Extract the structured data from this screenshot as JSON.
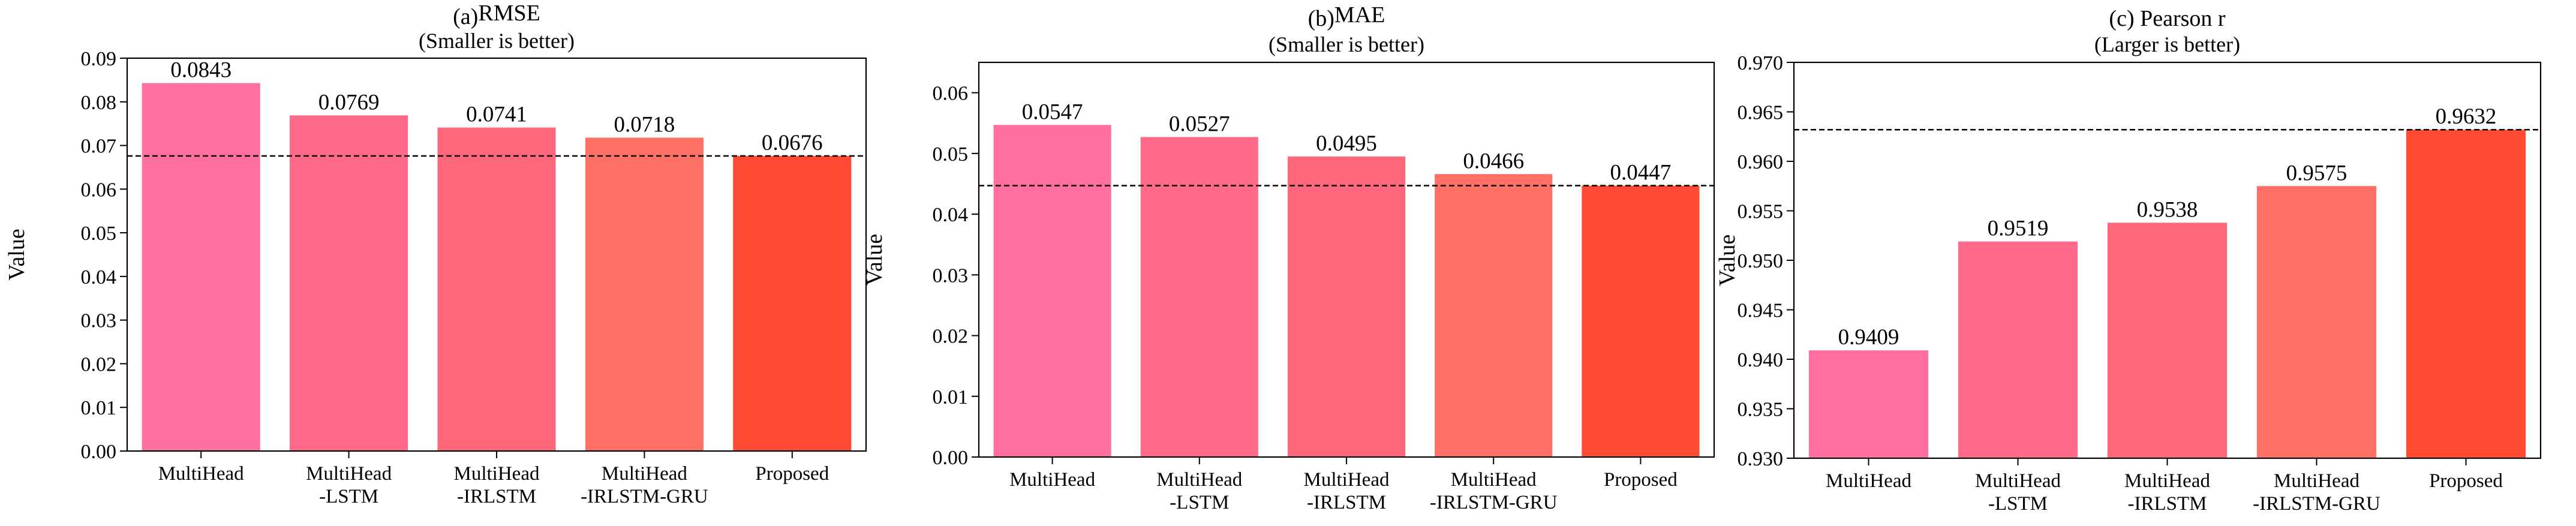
{
  "chart_data": [
    {
      "type": "bar",
      "panel": "(a)",
      "title": "RMSE",
      "subtitle": "(Smaller is better)",
      "ylabel": "Value",
      "categories": [
        "MultiHead",
        "MultiHead\n-LSTM",
        "MultiHead\n-IRLSTM",
        "MultiHead\n-IRLSTM-GRU",
        "Proposed"
      ],
      "values": [
        0.0843,
        0.0769,
        0.0741,
        0.0718,
        0.0676
      ],
      "value_labels": [
        "0.0843",
        "0.0769",
        "0.0741",
        "0.0718",
        "0.0676"
      ],
      "ylim": [
        0,
        0.09
      ],
      "yticks": [
        0,
        0.01,
        0.02,
        0.03,
        0.04,
        0.05,
        0.06,
        0.07,
        0.08,
        0.09
      ],
      "ytick_labels": [
        "0.00",
        "0.01",
        "0.02",
        "0.03",
        "0.04",
        "0.05",
        "0.06",
        "0.07",
        "0.08",
        "0.09"
      ],
      "reference_line": 0.0676,
      "colors": [
        "#ff6fa0",
        "#ff6a8a",
        "#ff687a",
        "#ff7066",
        "#ff4b33"
      ]
    },
    {
      "type": "bar",
      "panel": "(b)",
      "title": "MAE",
      "subtitle": "(Smaller is better)",
      "ylabel": "Value",
      "categories": [
        "MultiHead",
        "MultiHead\n-LSTM",
        "MultiHead\n-IRLSTM",
        "MultiHead\n-IRLSTM-GRU",
        "Proposed"
      ],
      "values": [
        0.0547,
        0.0527,
        0.0495,
        0.0466,
        0.0447
      ],
      "value_labels": [
        "0.0547",
        "0.0527",
        "0.0495",
        "0.0466",
        "0.0447"
      ],
      "ylim": [
        0,
        0.065
      ],
      "yticks": [
        0,
        0.01,
        0.02,
        0.03,
        0.04,
        0.05,
        0.06
      ],
      "ytick_labels": [
        "0.00",
        "0.01",
        "0.02",
        "0.03",
        "0.04",
        "0.05",
        "0.06"
      ],
      "reference_line": 0.0447,
      "colors": [
        "#ff6fa0",
        "#ff6a8a",
        "#ff687a",
        "#ff7066",
        "#ff4b33"
      ]
    },
    {
      "type": "bar",
      "panel": "(c)",
      "title": "Pearson r",
      "subtitle": "(Larger is better)",
      "ylabel": "Value",
      "categories": [
        "MultiHead",
        "MultiHead\n-LSTM",
        "MultiHead\n-IRLSTM",
        "MultiHead\n-IRLSTM-GRU",
        "Proposed"
      ],
      "values": [
        0.9409,
        0.9519,
        0.9538,
        0.9575,
        0.9632
      ],
      "value_labels": [
        "0.9409",
        "0.9519",
        "0.9538",
        "0.9575",
        "0.9632"
      ],
      "ylim": [
        0.93,
        0.97
      ],
      "yticks": [
        0.93,
        0.935,
        0.94,
        0.945,
        0.95,
        0.955,
        0.96,
        0.965,
        0.97
      ],
      "ytick_labels": [
        "0.930",
        "0.935",
        "0.940",
        "0.945",
        "0.950",
        "0.955",
        "0.960",
        "0.965",
        "0.970"
      ],
      "reference_line": 0.9632,
      "colors": [
        "#ff6fa0",
        "#ff6a8a",
        "#ff687a",
        "#ff7066",
        "#ff4b33"
      ]
    }
  ]
}
